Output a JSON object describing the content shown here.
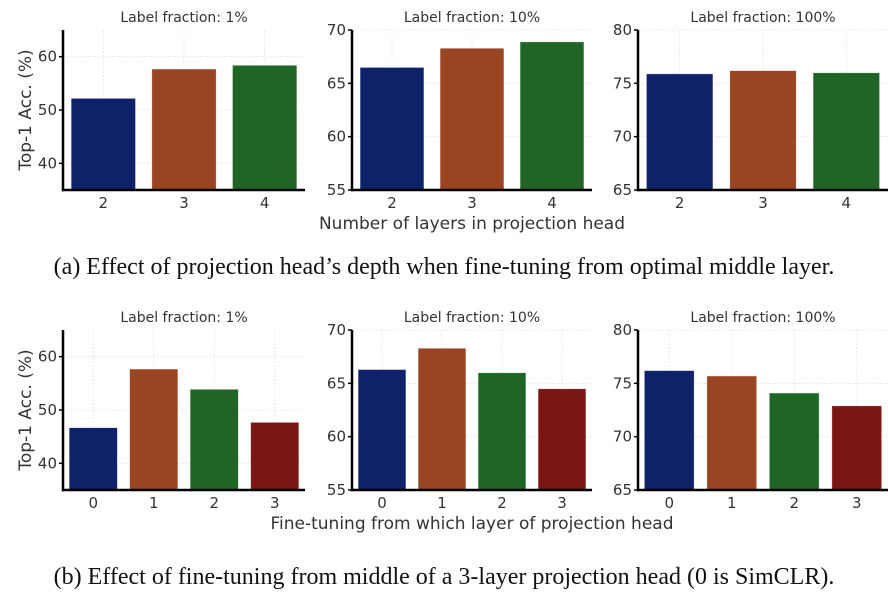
{
  "figure": {
    "caption_a": "(a)  Effect of projection head’s depth when fine-tuning from optimal middle layer.",
    "caption_b": "(b) Effect of fine-tuning from middle of a 3-layer projection head (0 is SimCLR).",
    "colors": [
      "#0f2169",
      "#9a4522",
      "#1f6626",
      "#7a1712"
    ]
  },
  "chart_data": [
    {
      "id": "a-1",
      "type": "bar",
      "title": "Label fraction: 1%",
      "categories": [
        "2",
        "3",
        "4"
      ],
      "values": [
        52.2,
        57.7,
        58.4
      ],
      "ylim": [
        35,
        65
      ],
      "yticks": [
        40,
        50,
        60
      ],
      "ylabel": "Top-1 Acc. (%)",
      "xlabel": "",
      "grid": true
    },
    {
      "id": "a-2",
      "type": "bar",
      "title": "Label fraction: 10%",
      "categories": [
        "2",
        "3",
        "4"
      ],
      "values": [
        66.5,
        68.3,
        68.9
      ],
      "ylim": [
        55,
        70
      ],
      "yticks": [
        55,
        60,
        65,
        70
      ],
      "ylabel": "",
      "xlabel": "Number of layers in projection head",
      "grid": true
    },
    {
      "id": "a-3",
      "type": "bar",
      "title": "Label fraction: 100%",
      "categories": [
        "2",
        "3",
        "4"
      ],
      "values": [
        75.9,
        76.2,
        76.0
      ],
      "ylim": [
        65,
        80
      ],
      "yticks": [
        65,
        70,
        75,
        80
      ],
      "ylabel": "",
      "xlabel": "",
      "grid": true
    },
    {
      "id": "b-1",
      "type": "bar",
      "title": "Label fraction: 1%",
      "categories": [
        "0",
        "1",
        "2",
        "3"
      ],
      "values": [
        46.7,
        57.7,
        53.9,
        47.7
      ],
      "ylim": [
        35,
        65
      ],
      "yticks": [
        40,
        50,
        60
      ],
      "ylabel": "Top-1 Acc. (%)",
      "xlabel": "",
      "grid": true
    },
    {
      "id": "b-2",
      "type": "bar",
      "title": "Label fraction: 10%",
      "categories": [
        "0",
        "1",
        "2",
        "3"
      ],
      "values": [
        66.3,
        68.3,
        66.0,
        64.5
      ],
      "ylim": [
        55,
        70
      ],
      "yticks": [
        55,
        60,
        65,
        70
      ],
      "ylabel": "",
      "xlabel": "Fine-tuning from which layer of projection head",
      "grid": true
    },
    {
      "id": "b-3",
      "type": "bar",
      "title": "Label fraction: 100%",
      "categories": [
        "0",
        "1",
        "2",
        "3"
      ],
      "values": [
        76.2,
        75.7,
        74.1,
        72.9
      ],
      "ylim": [
        65,
        80
      ],
      "yticks": [
        65,
        70,
        75,
        80
      ],
      "ylabel": "",
      "xlabel": "",
      "grid": true
    }
  ]
}
